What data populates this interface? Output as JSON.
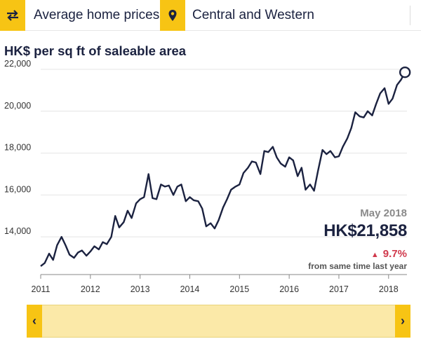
{
  "toolbar": {
    "measure_icon": "swap-arrows-icon",
    "measure_label": "Average home prices",
    "location_icon": "map-pin-icon",
    "location_label": "Central and Western"
  },
  "chart_data": {
    "type": "line",
    "title": "",
    "ylabel": "HK$ per sq ft of saleable area",
    "xlabel": "",
    "ylim": [
      12200,
      22300
    ],
    "y_ticks": [
      "22,000",
      "20,000",
      "18,000",
      "16,000",
      "14,000"
    ],
    "y_tick_values": [
      22000,
      20000,
      18000,
      16000,
      14000
    ],
    "x_ticks": [
      "2011",
      "2012",
      "2013",
      "2014",
      "2015",
      "2016",
      "2017",
      "2018"
    ],
    "x_tick_values": [
      2011,
      2012,
      2013,
      2014,
      2015,
      2016,
      2017,
      2018
    ],
    "xlim": [
      2011,
      2018.37
    ],
    "grid": "horizontal",
    "color": "#1b2240",
    "series": [
      {
        "x": [
          2011.0,
          2011.08,
          2011.17,
          2011.25,
          2011.33,
          2011.42,
          2011.5,
          2011.58,
          2011.67,
          2011.75,
          2011.83,
          2011.92,
          2012.0,
          2012.08,
          2012.17,
          2012.25,
          2012.33,
          2012.42,
          2012.5,
          2012.58,
          2012.67,
          2012.75,
          2012.83,
          2012.92,
          2013.0,
          2013.08,
          2013.17,
          2013.25,
          2013.33,
          2013.42,
          2013.5,
          2013.58,
          2013.67,
          2013.75,
          2013.83,
          2013.92,
          2014.0,
          2014.08,
          2014.17,
          2014.25,
          2014.33,
          2014.42,
          2014.5,
          2014.58,
          2014.67,
          2014.75,
          2014.83,
          2014.92,
          2015.0,
          2015.08,
          2015.17,
          2015.25,
          2015.33,
          2015.42,
          2015.5,
          2015.58,
          2015.67,
          2015.75,
          2015.83,
          2015.92,
          2016.0,
          2016.08,
          2016.17,
          2016.25,
          2016.33,
          2016.42,
          2016.5,
          2016.58,
          2016.67,
          2016.75,
          2016.83,
          2016.92,
          2017.0,
          2017.08,
          2017.17,
          2017.25,
          2017.33,
          2017.42,
          2017.5,
          2017.58,
          2017.67,
          2017.75,
          2017.83,
          2017.92,
          2018.0,
          2018.08,
          2018.17,
          2018.25,
          2018.33
        ],
        "values": [
          12600,
          12750,
          13200,
          12900,
          13600,
          14000,
          13600,
          13150,
          13000,
          13250,
          13350,
          13100,
          13300,
          13550,
          13400,
          13750,
          13650,
          14000,
          15000,
          14450,
          14700,
          15250,
          14900,
          15600,
          15800,
          15900,
          17000,
          15850,
          15800,
          16500,
          16400,
          16450,
          16000,
          16400,
          16500,
          15700,
          15900,
          15750,
          15700,
          15350,
          14500,
          14650,
          14400,
          14800,
          15400,
          15800,
          16250,
          16400,
          16500,
          17050,
          17300,
          17600,
          17550,
          17000,
          18100,
          18050,
          18300,
          17800,
          17500,
          17350,
          17800,
          17650,
          16900,
          17300,
          16250,
          16500,
          16200,
          17150,
          18150,
          17950,
          18100,
          17800,
          17850,
          18300,
          18700,
          19200,
          19950,
          19750,
          19700,
          20000,
          19800,
          20350,
          20850,
          21100,
          20350,
          20600,
          21250,
          21500,
          21858
        ]
      }
    ]
  },
  "annotation": {
    "date": "May 2018",
    "value": "HK$21,858",
    "change": "9.7%",
    "change_icon": "triangle-up-icon",
    "note": "from same time last year"
  },
  "navigator": {
    "left_icon": "chevron-left-icon",
    "right_icon": "chevron-right-icon"
  }
}
